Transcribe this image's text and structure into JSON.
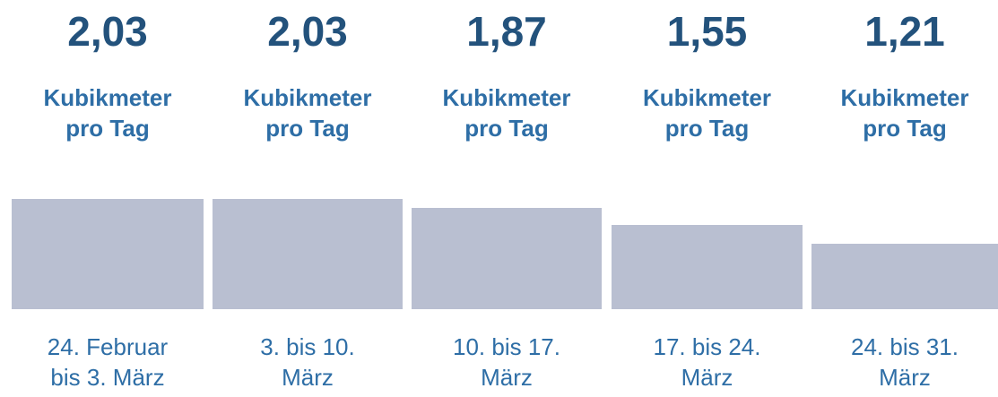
{
  "chart_data": {
    "type": "bar",
    "categories": [
      "24. Februar bis 3. März",
      "3. bis 10. März",
      "10. bis 17. März",
      "17. bis 24. März",
      "24. bis 31. März"
    ],
    "values": [
      2.03,
      2.03,
      1.87,
      1.55,
      1.21
    ],
    "value_labels": [
      "2,03",
      "2,03",
      "1,87",
      "1,55",
      "1,21"
    ],
    "unit_label": "Kubikmeter pro Tag",
    "color": "#b9bfd1"
  }
}
